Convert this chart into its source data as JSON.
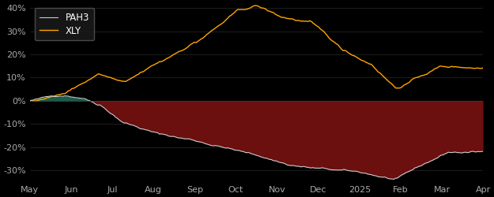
{
  "background_color": "#000000",
  "plot_bg_color": "#000000",
  "ylim": [
    -0.35,
    0.42
  ],
  "yticks": [
    -0.3,
    -0.2,
    -0.1,
    0.0,
    0.1,
    0.2,
    0.3,
    0.4
  ],
  "ytick_labels": [
    "-30%",
    "-20%",
    "-10%",
    "0%",
    "10%",
    "20%",
    "30%",
    "40%"
  ],
  "xtick_labels": [
    "May",
    "Jun",
    "Jul",
    "Aug",
    "Sep",
    "Oct",
    "Nov",
    "Dec",
    "2025",
    "Feb",
    "Mar",
    "Apr"
  ],
  "pah3_color": "#cccccc",
  "xly_color": "#FFA500",
  "fill_positive_color": "#1a5c4a",
  "fill_negative_color": "#6b0f0f",
  "legend_bg": "#1a1a1a",
  "legend_edge": "#555555",
  "tick_color": "#aaaaaa",
  "grid_color": "#2a2a2a",
  "n_points": 260
}
